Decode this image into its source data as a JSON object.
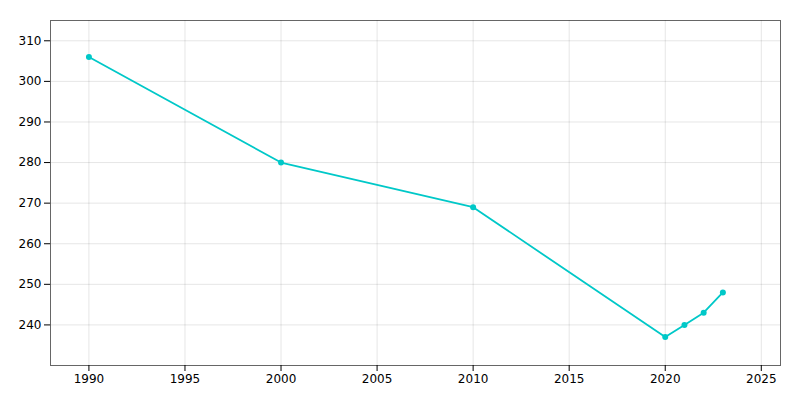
{
  "chart_data": {
    "type": "line",
    "x": [
      1990,
      2000,
      2010,
      2020,
      2021,
      2022,
      2023
    ],
    "values": [
      306,
      280,
      269,
      237,
      240,
      243,
      248
    ],
    "color": "#00C8C8",
    "marker": "circle",
    "xlim": [
      1988,
      2026
    ],
    "ylim": [
      230,
      315
    ],
    "xticks": [
      1990,
      1995,
      2000,
      2005,
      2010,
      2015,
      2020,
      2025
    ],
    "yticks": [
      240,
      250,
      260,
      270,
      280,
      290,
      300,
      310
    ],
    "grid": true
  }
}
